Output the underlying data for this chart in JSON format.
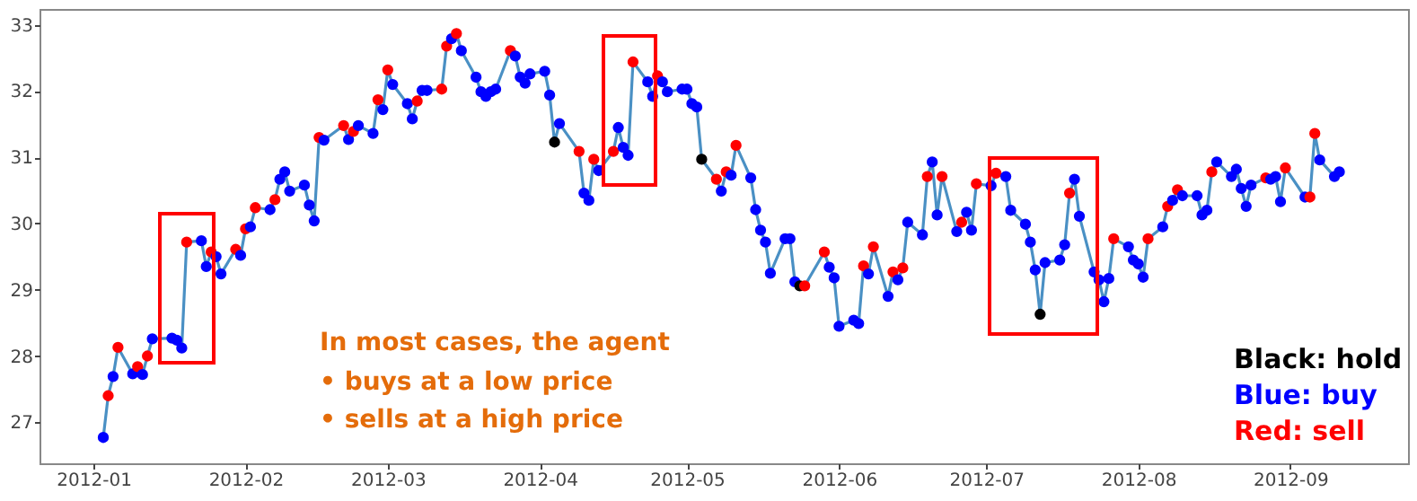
{
  "chart_data": {
    "type": "line",
    "marker": "circle",
    "line_style": "solid",
    "xlim": [
      "2011-12-21",
      "2012-09-25"
    ],
    "ylim": [
      26.38,
      33.24
    ],
    "xticks": [
      "2012-01",
      "2012-02",
      "2012-03",
      "2012-04",
      "2012-05",
      "2012-06",
      "2012-07",
      "2012-08",
      "2012-09"
    ],
    "yticks": [
      27,
      28,
      29,
      30,
      31,
      32,
      33
    ],
    "x": [
      "2012-01-03",
      "2012-01-04",
      "2012-01-05",
      "2012-01-06",
      "2012-01-09",
      "2012-01-10",
      "2012-01-11",
      "2012-01-12",
      "2012-01-13",
      "2012-01-17",
      "2012-01-18",
      "2012-01-19",
      "2012-01-20",
      "2012-01-23",
      "2012-01-24",
      "2012-01-25",
      "2012-01-26",
      "2012-01-27",
      "2012-01-30",
      "2012-01-31",
      "2012-02-01",
      "2012-02-02",
      "2012-02-03",
      "2012-02-06",
      "2012-02-07",
      "2012-02-08",
      "2012-02-09",
      "2012-02-10",
      "2012-02-13",
      "2012-02-14",
      "2012-02-15",
      "2012-02-16",
      "2012-02-17",
      "2012-02-21",
      "2012-02-22",
      "2012-02-23",
      "2012-02-24",
      "2012-02-27",
      "2012-02-28",
      "2012-02-29",
      "2012-03-01",
      "2012-03-02",
      "2012-03-05",
      "2012-03-06",
      "2012-03-07",
      "2012-03-08",
      "2012-03-09",
      "2012-03-12",
      "2012-03-13",
      "2012-03-14",
      "2012-03-15",
      "2012-03-16",
      "2012-03-19",
      "2012-03-20",
      "2012-03-21",
      "2012-03-22",
      "2012-03-23",
      "2012-03-26",
      "2012-03-27",
      "2012-03-28",
      "2012-03-29",
      "2012-03-30",
      "2012-04-02",
      "2012-04-03",
      "2012-04-04",
      "2012-04-05",
      "2012-04-09",
      "2012-04-10",
      "2012-04-11",
      "2012-04-12",
      "2012-04-13",
      "2012-04-16",
      "2012-04-17",
      "2012-04-18",
      "2012-04-19",
      "2012-04-20",
      "2012-04-23",
      "2012-04-24",
      "2012-04-25",
      "2012-04-26",
      "2012-04-27",
      "2012-04-30",
      "2012-05-01",
      "2012-05-02",
      "2012-05-03",
      "2012-05-04",
      "2012-05-07",
      "2012-05-08",
      "2012-05-09",
      "2012-05-10",
      "2012-05-11",
      "2012-05-14",
      "2012-05-15",
      "2012-05-16",
      "2012-05-17",
      "2012-05-18",
      "2012-05-21",
      "2012-05-22",
      "2012-05-23",
      "2012-05-24",
      "2012-05-25",
      "2012-05-29",
      "2012-05-30",
      "2012-05-31",
      "2012-06-01",
      "2012-06-04",
      "2012-06-05",
      "2012-06-06",
      "2012-06-07",
      "2012-06-08",
      "2012-06-11",
      "2012-06-12",
      "2012-06-13",
      "2012-06-14",
      "2012-06-15",
      "2012-06-18",
      "2012-06-19",
      "2012-06-20",
      "2012-06-21",
      "2012-06-22",
      "2012-06-25",
      "2012-06-26",
      "2012-06-27",
      "2012-06-28",
      "2012-06-29",
      "2012-07-02",
      "2012-07-03",
      "2012-07-05",
      "2012-07-06",
      "2012-07-09",
      "2012-07-10",
      "2012-07-11",
      "2012-07-12",
      "2012-07-13",
      "2012-07-16",
      "2012-07-17",
      "2012-07-18",
      "2012-07-19",
      "2012-07-20",
      "2012-07-23",
      "2012-07-24",
      "2012-07-25",
      "2012-07-26",
      "2012-07-27",
      "2012-07-30",
      "2012-07-31",
      "2012-08-01",
      "2012-08-02",
      "2012-08-03",
      "2012-08-06",
      "2012-08-07",
      "2012-08-08",
      "2012-08-09",
      "2012-08-10",
      "2012-08-13",
      "2012-08-14",
      "2012-08-15",
      "2012-08-16",
      "2012-08-17",
      "2012-08-20",
      "2012-08-21",
      "2012-08-22",
      "2012-08-23",
      "2012-08-24",
      "2012-08-27",
      "2012-08-28",
      "2012-08-29",
      "2012-08-30",
      "2012-08-31",
      "2012-09-04",
      "2012-09-05",
      "2012-09-06",
      "2012-09-07",
      "2012-09-10",
      "2012-09-11"
    ],
    "series": [
      {
        "color": "#4a90c4",
        "values": [
          26.77,
          27.4,
          27.69,
          28.13,
          27.73,
          27.84,
          27.72,
          28.0,
          28.26,
          28.27,
          28.24,
          28.12,
          29.72,
          29.74,
          29.35,
          29.57,
          29.5,
          29.24,
          29.61,
          29.52,
          29.92,
          29.95,
          30.24,
          30.21,
          30.36,
          30.67,
          30.78,
          30.49,
          30.58,
          30.28,
          30.04,
          31.3,
          31.26,
          31.48,
          31.27,
          31.39,
          31.48,
          31.36,
          31.87,
          31.72,
          32.32,
          32.1,
          31.81,
          31.58,
          31.85,
          32.01,
          32.01,
          32.03,
          32.68,
          32.79,
          32.87,
          32.61,
          32.21,
          31.99,
          31.92,
          31.99,
          32.03,
          32.61,
          32.53,
          32.21,
          32.12,
          32.26,
          32.3,
          31.94,
          31.23,
          31.51,
          31.09,
          30.46,
          30.35,
          30.97,
          30.8,
          31.09,
          31.45,
          31.15,
          31.03,
          32.44,
          32.14,
          31.92,
          32.23,
          32.14,
          31.99,
          32.03,
          32.03,
          31.81,
          31.76,
          30.97,
          30.67,
          30.49,
          30.78,
          30.73,
          31.18,
          30.69,
          30.21,
          29.9,
          29.72,
          29.25,
          29.77,
          29.77,
          29.12,
          29.06,
          29.06,
          29.57,
          29.34,
          29.18,
          28.45,
          28.54,
          28.49,
          29.36,
          29.24,
          29.65,
          28.9,
          29.27,
          29.15,
          29.33,
          30.02,
          29.83,
          30.71,
          30.93,
          30.13,
          30.71,
          29.88,
          30.02,
          30.17,
          29.9,
          30.6,
          30.57,
          30.76,
          30.71,
          30.2,
          29.99,
          29.72,
          29.3,
          28.63,
          29.41,
          29.45,
          29.68,
          30.46,
          30.67,
          30.11,
          29.27,
          29.15,
          28.82,
          29.17,
          29.77,
          29.65,
          29.45,
          29.39,
          29.19,
          29.77,
          29.95,
          30.26,
          30.35,
          30.51,
          30.42,
          30.42,
          30.13,
          30.2,
          30.78,
          30.93,
          30.71,
          30.82,
          30.53,
          30.26,
          30.58,
          30.69,
          30.67,
          30.71,
          30.33,
          30.84,
          30.4,
          30.4,
          31.36,
          30.96,
          30.71,
          30.78
        ],
        "colors": [
          "#0000ff",
          "#ff0000",
          "#0000ff",
          "#ff0000",
          "#0000ff",
          "#ff0000",
          "#0000ff",
          "#ff0000",
          "#0000ff",
          "#0000ff",
          "#0000ff",
          "#0000ff",
          "#ff0000",
          "#0000ff",
          "#0000ff",
          "#ff0000",
          "#0000ff",
          "#0000ff",
          "#ff0000",
          "#0000ff",
          "#ff0000",
          "#0000ff",
          "#ff0000",
          "#0000ff",
          "#ff0000",
          "#0000ff",
          "#0000ff",
          "#0000ff",
          "#0000ff",
          "#0000ff",
          "#0000ff",
          "#ff0000",
          "#0000ff",
          "#ff0000",
          "#0000ff",
          "#ff0000",
          "#0000ff",
          "#0000ff",
          "#ff0000",
          "#0000ff",
          "#ff0000",
          "#0000ff",
          "#0000ff",
          "#0000ff",
          "#ff0000",
          "#0000ff",
          "#0000ff",
          "#ff0000",
          "#ff0000",
          "#0000ff",
          "#ff0000",
          "#0000ff",
          "#0000ff",
          "#0000ff",
          "#0000ff",
          "#0000ff",
          "#0000ff",
          "#ff0000",
          "#0000ff",
          "#0000ff",
          "#0000ff",
          "#0000ff",
          "#0000ff",
          "#0000ff",
          "#000000",
          "#0000ff",
          "#ff0000",
          "#0000ff",
          "#0000ff",
          "#ff0000",
          "#0000ff",
          "#ff0000",
          "#0000ff",
          "#0000ff",
          "#0000ff",
          "#ff0000",
          "#0000ff",
          "#0000ff",
          "#ff0000",
          "#0000ff",
          "#0000ff",
          "#0000ff",
          "#0000ff",
          "#0000ff",
          "#0000ff",
          "#000000",
          "#ff0000",
          "#0000ff",
          "#ff0000",
          "#0000ff",
          "#ff0000",
          "#0000ff",
          "#0000ff",
          "#0000ff",
          "#0000ff",
          "#0000ff",
          "#0000ff",
          "#0000ff",
          "#0000ff",
          "#000000",
          "#ff0000",
          "#ff0000",
          "#0000ff",
          "#0000ff",
          "#0000ff",
          "#0000ff",
          "#0000ff",
          "#ff0000",
          "#0000ff",
          "#ff0000",
          "#0000ff",
          "#ff0000",
          "#0000ff",
          "#ff0000",
          "#0000ff",
          "#0000ff",
          "#ff0000",
          "#0000ff",
          "#0000ff",
          "#ff0000",
          "#0000ff",
          "#ff0000",
          "#0000ff",
          "#0000ff",
          "#ff0000",
          "#0000ff",
          "#ff0000",
          "#0000ff",
          "#0000ff",
          "#0000ff",
          "#0000ff",
          "#0000ff",
          "#000000",
          "#0000ff",
          "#0000ff",
          "#0000ff",
          "#ff0000",
          "#0000ff",
          "#0000ff",
          "#0000ff",
          "#0000ff",
          "#0000ff",
          "#0000ff",
          "#ff0000",
          "#0000ff",
          "#0000ff",
          "#0000ff",
          "#0000ff",
          "#ff0000",
          "#0000ff",
          "#ff0000",
          "#0000ff",
          "#ff0000",
          "#0000ff",
          "#0000ff",
          "#0000ff",
          "#0000ff",
          "#ff0000",
          "#0000ff",
          "#0000ff",
          "#0000ff",
          "#0000ff",
          "#0000ff",
          "#0000ff",
          "#ff0000",
          "#0000ff",
          "#0000ff",
          "#0000ff",
          "#ff0000",
          "#0000ff",
          "#ff0000",
          "#ff0000",
          "#0000ff",
          "#0000ff",
          "#0000ff"
        ]
      }
    ],
    "annotations": [
      "In most cases, the agent",
      "•  buys at a low price",
      "•  sells at a high price",
      "Black: hold",
      "Blue: buy",
      "Red: sell"
    ]
  }
}
